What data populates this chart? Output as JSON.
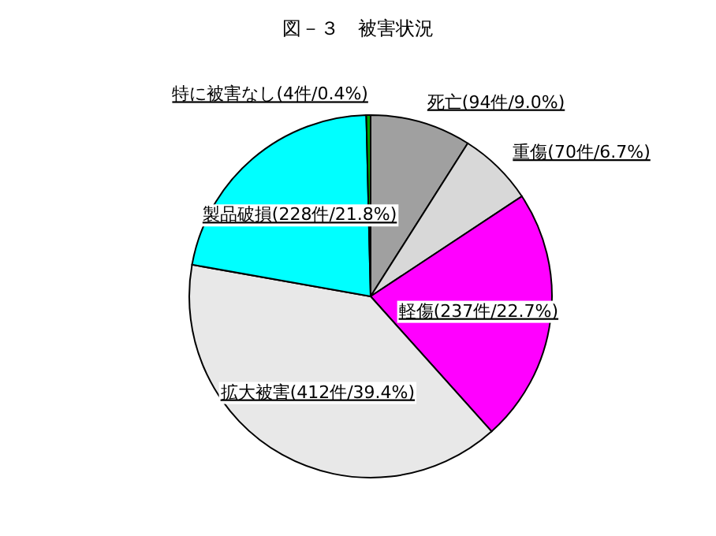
{
  "chart_data": {
    "type": "pie",
    "title": "図－３　被害状況",
    "categories": [
      "死亡",
      "重傷",
      "軽傷",
      "拡大被害",
      "製品破損",
      "特に被害なし"
    ],
    "values": [
      94,
      70,
      237,
      412,
      228,
      4
    ],
    "value_labels": [
      "(94件/9.0%)",
      "(70件/6.7%)",
      "(237件/22.7%)",
      "(412件/39.4%)",
      "(228件/21.8%)",
      "(4件/0.4%)"
    ],
    "colors": [
      "#a0a0a0",
      "#d8d8d8",
      "#ff00ff",
      "#e8e8e8",
      "#00ffff",
      "#00a000"
    ]
  }
}
